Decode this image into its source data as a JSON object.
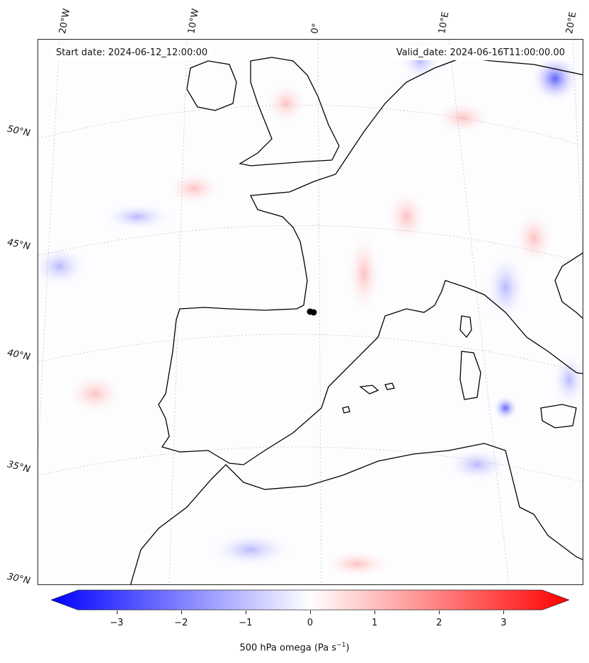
{
  "header": {
    "start_date": "Start date: 2024-06-12_12:00:00",
    "valid_date": "Valid_date: 2024-06-16T11:00:00.00"
  },
  "map": {
    "field": "500 hPa omega",
    "longitude_labels": [
      "20°W",
      "10°W",
      "0°",
      "10°E",
      "20°E"
    ],
    "latitude_labels": [
      "50°N",
      "45°N",
      "40°N",
      "35°N",
      "30°N"
    ],
    "marker": "black-dot-location"
  },
  "colorbar": {
    "label_main": "500 hPa omega (Pa s",
    "label_exp": "−1",
    "label_close": ")",
    "ticks": [
      "−3",
      "−2",
      "−1",
      "0",
      "1",
      "2",
      "3"
    ],
    "tick_values": [
      -3,
      -2,
      -1,
      0,
      1,
      2,
      3
    ],
    "range": [
      -3.6,
      3.6
    ],
    "colormap": "bwr",
    "colors": {
      "negative": "#0000ff",
      "zero": "#ffffff",
      "positive": "#ff0000"
    }
  }
}
